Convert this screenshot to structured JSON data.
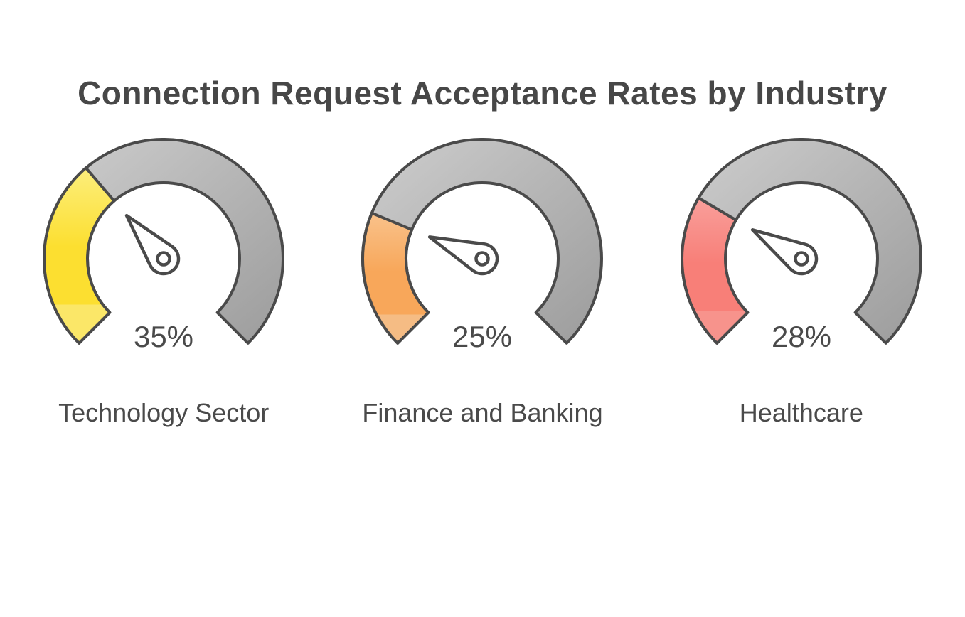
{
  "page": {
    "background": "#ffffff"
  },
  "title": "Connection Request Acceptance Rates by Industry",
  "chart_data": {
    "type": "gauge",
    "title": "Connection Request Acceptance Rates by Industry",
    "min": 0,
    "max": 100,
    "unit": "%",
    "start_angle_deg": 225,
    "sweep_deg": 270,
    "legend": false,
    "gauges": [
      {
        "label": "Technology Sector",
        "value": 35,
        "display": "35%",
        "color_top": "#fcee7c",
        "color_main": "#fcdf30",
        "color_tip": "#fbe768"
      },
      {
        "label": "Finance and Banking",
        "value": 25,
        "display": "25%",
        "color_top": "#f9c28b",
        "color_main": "#f8a75a",
        "color_tip": "#f5bc84"
      },
      {
        "label": "Healthcare",
        "value": 28,
        "display": "28%",
        "color_top": "#f99f9b",
        "color_main": "#f87f78",
        "color_tip": "#f7938c"
      }
    ],
    "style": {
      "track_gradient_start": "#cecece",
      "track_gradient_end": "#9c9c9c",
      "outline_color": "#4a4a4a",
      "needle_fill": "#ffffff",
      "value_text_color": "#4a4a4a",
      "label_text_color": "#4a4a4a",
      "title_color": "#474747"
    }
  }
}
